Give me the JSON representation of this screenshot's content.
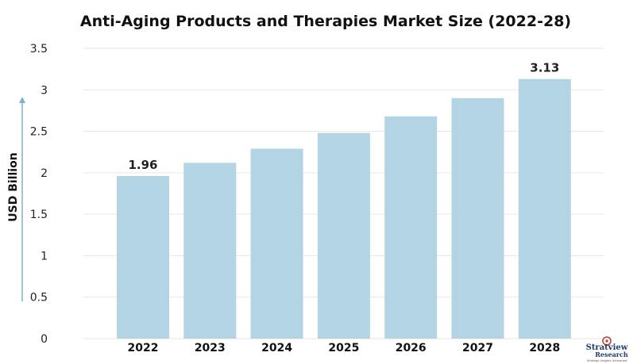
{
  "chart_data": {
    "type": "bar",
    "title": "Anti-Aging Products and Therapies Market Size (2022-28)",
    "ylabel": "USD Billion",
    "xlabel": "",
    "categories": [
      "2022",
      "2023",
      "2024",
      "2025",
      "2026",
      "2027",
      "2028"
    ],
    "values": [
      1.96,
      2.12,
      2.29,
      2.48,
      2.68,
      2.9,
      3.13
    ],
    "data_labels": [
      {
        "category": "2022",
        "text": "1.96"
      },
      {
        "category": "2028",
        "text": "3.13"
      }
    ],
    "ylim": [
      0,
      3.5
    ],
    "yticks": [
      "0",
      "0.5",
      "1",
      "1.5",
      "2",
      "2.5",
      "3",
      "3.5"
    ],
    "grid": true,
    "bar_color": "#b3d5e3",
    "axis_arrow_color": "#7fb3cc"
  },
  "branding": {
    "logo_name": "Stratview",
    "logo_sub": "Research",
    "logo_tagline": "Strategic Insights Unleashed"
  }
}
